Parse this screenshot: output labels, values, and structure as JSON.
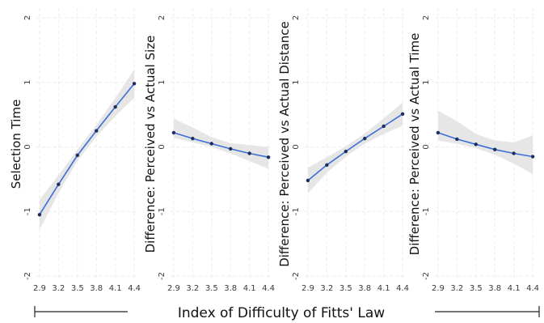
{
  "chart_data": {
    "type": "line",
    "xlabel": "Index of Difficulty of Fitts' Law",
    "x_ticks": [
      "2.9",
      "3.2",
      "3.5",
      "3.8",
      "4.1",
      "4.4"
    ],
    "y_ticks": [
      "-2",
      "-1",
      "0",
      "1",
      "2"
    ],
    "xlim": [
      2.85,
      4.45
    ],
    "ylim": [
      -2.05,
      2.15
    ],
    "grid": true,
    "line_color": "#3b6fd8",
    "band_color": "#e6e6e6",
    "point_color": "#1f2d5a",
    "panels": [
      {
        "ylabel": "Selection Time",
        "x": [
          2.9,
          3.2,
          3.5,
          3.8,
          4.1,
          4.4
        ],
        "y": [
          -1.05,
          -0.58,
          -0.13,
          0.25,
          0.62,
          0.98
        ],
        "ci_lower": [
          -1.28,
          -0.72,
          -0.22,
          0.16,
          0.48,
          0.76
        ],
        "ci_upper": [
          -0.82,
          -0.44,
          -0.04,
          0.34,
          0.76,
          1.2
        ]
      },
      {
        "ylabel": "Difference: Perceived vs Actual Size",
        "x": [
          2.9,
          3.2,
          3.5,
          3.8,
          4.1,
          4.4
        ],
        "y": [
          0.22,
          0.13,
          0.05,
          -0.03,
          -0.1,
          -0.16
        ],
        "ci_lower": [
          0.14,
          0.07,
          0.0,
          -0.1,
          -0.22,
          -0.34
        ],
        "ci_upper": [
          0.44,
          0.3,
          0.15,
          0.06,
          0.03,
          0.0
        ]
      },
      {
        "ylabel": "Difference: Perceived vs Actual Distance",
        "x": [
          2.9,
          3.2,
          3.5,
          3.8,
          4.1,
          4.4
        ],
        "y": [
          -0.52,
          -0.28,
          -0.07,
          0.13,
          0.32,
          0.51
        ],
        "ci_lower": [
          -0.72,
          -0.4,
          -0.15,
          0.05,
          0.2,
          0.33
        ],
        "ci_upper": [
          -0.32,
          -0.16,
          0.01,
          0.21,
          0.44,
          0.69
        ]
      },
      {
        "ylabel": "Difference: Perceived vs Actual  Time",
        "x": [
          2.9,
          3.2,
          3.5,
          3.8,
          4.1,
          4.4
        ],
        "y": [
          0.22,
          0.12,
          0.04,
          -0.04,
          -0.1,
          -0.15
        ],
        "ci_lower": [
          0.1,
          0.05,
          -0.02,
          -0.12,
          -0.26,
          -0.42
        ],
        "ci_upper": [
          0.56,
          0.4,
          0.2,
          0.1,
          0.07,
          0.18
        ]
      }
    ]
  }
}
